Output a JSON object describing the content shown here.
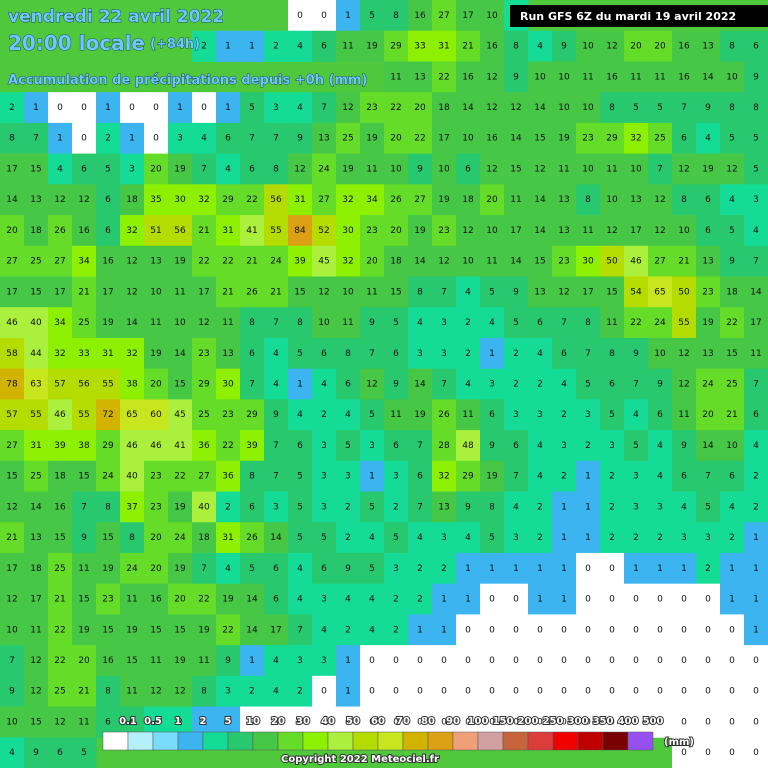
{
  "header": {
    "date": "vendredi 22 avril 2022",
    "time": "20:00 locale",
    "lead": "(+84h)",
    "subtitle": "Accumulation de précipitations depuis +0h (mm)",
    "run": "Run GFS 6Z du mardi 19 avril 2022"
  },
  "grid": {
    "rows": [
      [
        null,
        null,
        null,
        null,
        null,
        null,
        null,
        null,
        null,
        null,
        null,
        null,
        0,
        0,
        1,
        5,
        8,
        16,
        27,
        17,
        10,
        3,
        null,
        null,
        null,
        null,
        null,
        null,
        null,
        null,
        null,
        null
      ],
      [
        null,
        null,
        null,
        null,
        null,
        null,
        null,
        null,
        2,
        1,
        1,
        2,
        4,
        6,
        11,
        19,
        29,
        33,
        31,
        21,
        16,
        8,
        4,
        9,
        10,
        12,
        20,
        20,
        16,
        13,
        8,
        6
      ],
      [
        null,
        null,
        null,
        null,
        null,
        null,
        null,
        null,
        null,
        null,
        null,
        null,
        null,
        null,
        null,
        null,
        11,
        13,
        22,
        16,
        12,
        9,
        10,
        10,
        11,
        16,
        11,
        11,
        16,
        14,
        10,
        9
      ],
      [
        2,
        1,
        0,
        0,
        1,
        0,
        0,
        1,
        0,
        1,
        5,
        3,
        4,
        7,
        12,
        23,
        22,
        20,
        18,
        14,
        12,
        12,
        14,
        10,
        10,
        8,
        5,
        5,
        7,
        9,
        8,
        8
      ],
      [
        8,
        7,
        1,
        0,
        2,
        1,
        0,
        3,
        4,
        6,
        7,
        7,
        9,
        13,
        25,
        19,
        20,
        22,
        17,
        10,
        16,
        14,
        15,
        19,
        23,
        29,
        32,
        25,
        6,
        4,
        5,
        5
      ],
      [
        17,
        15,
        4,
        6,
        5,
        3,
        20,
        19,
        7,
        4,
        6,
        8,
        12,
        24,
        19,
        11,
        10,
        9,
        10,
        6,
        12,
        15,
        12,
        11,
        10,
        11,
        10,
        7,
        12,
        19,
        12,
        5
      ],
      [
        14,
        13,
        12,
        12,
        6,
        18,
        35,
        30,
        32,
        29,
        22,
        56,
        31,
        27,
        32,
        34,
        26,
        27,
        19,
        18,
        20,
        11,
        14,
        13,
        8,
        10,
        13,
        12,
        8,
        6,
        4,
        3
      ],
      [
        20,
        18,
        26,
        16,
        6,
        32,
        51,
        56,
        21,
        31,
        41,
        55,
        84,
        52,
        30,
        23,
        20,
        19,
        23,
        12,
        10,
        17,
        14,
        13,
        11,
        12,
        17,
        12,
        10,
        6,
        5,
        4
      ],
      [
        27,
        25,
        27,
        34,
        16,
        12,
        13,
        19,
        22,
        22,
        21,
        24,
        39,
        45,
        32,
        20,
        18,
        14,
        12,
        10,
        11,
        14,
        15,
        23,
        30,
        50,
        46,
        27,
        21,
        13,
        9,
        7
      ],
      [
        17,
        15,
        17,
        21,
        17,
        12,
        10,
        11,
        17,
        21,
        26,
        21,
        15,
        12,
        10,
        11,
        15,
        8,
        7,
        4,
        5,
        9,
        13,
        12,
        17,
        15,
        54,
        65,
        50,
        23,
        18,
        14
      ],
      [
        46,
        40,
        34,
        25,
        19,
        14,
        11,
        10,
        12,
        11,
        8,
        7,
        8,
        10,
        11,
        9,
        5,
        4,
        3,
        2,
        4,
        5,
        6,
        7,
        8,
        11,
        22,
        24,
        55,
        19,
        22,
        17
      ],
      [
        58,
        44,
        32,
        33,
        31,
        32,
        19,
        14,
        23,
        13,
        6,
        4,
        5,
        6,
        8,
        7,
        6,
        3,
        3,
        2,
        1,
        2,
        4,
        6,
        7,
        8,
        9,
        10,
        12,
        13,
        15,
        11
      ],
      [
        78,
        63,
        57,
        56,
        55,
        38,
        20,
        15,
        29,
        30,
        7,
        4,
        1,
        4,
        6,
        12,
        9,
        14,
        7,
        4,
        3,
        2,
        2,
        4,
        5,
        6,
        7,
        9,
        12,
        24,
        25,
        7
      ],
      [
        57,
        55,
        46,
        55,
        72,
        65,
        60,
        45,
        25,
        23,
        29,
        9,
        4,
        2,
        4,
        5,
        11,
        19,
        26,
        11,
        6,
        3,
        3,
        2,
        3,
        5,
        4,
        6,
        11,
        20,
        21,
        6
      ],
      [
        27,
        31,
        39,
        38,
        29,
        46,
        46,
        41,
        36,
        22,
        39,
        7,
        6,
        3,
        5,
        3,
        6,
        7,
        28,
        48,
        9,
        6,
        4,
        3,
        2,
        3,
        5,
        4,
        9,
        14,
        10,
        4
      ],
      [
        15,
        25,
        18,
        15,
        24,
        40,
        23,
        22,
        27,
        36,
        8,
        7,
        5,
        3,
        3,
        1,
        3,
        6,
        32,
        29,
        19,
        7,
        4,
        2,
        1,
        2,
        3,
        4,
        6,
        7,
        6,
        2
      ],
      [
        12,
        14,
        16,
        7,
        8,
        37,
        23,
        19,
        40,
        2,
        6,
        3,
        5,
        3,
        2,
        5,
        2,
        7,
        13,
        9,
        8,
        4,
        2,
        1,
        1,
        2,
        3,
        3,
        4,
        5,
        4,
        2
      ],
      [
        21,
        13,
        15,
        9,
        15,
        8,
        20,
        24,
        18,
        31,
        26,
        14,
        5,
        5,
        2,
        4,
        5,
        4,
        3,
        4,
        5,
        3,
        2,
        1,
        1,
        2,
        2,
        2,
        3,
        3,
        2,
        1
      ],
      [
        17,
        18,
        25,
        11,
        19,
        24,
        20,
        19,
        7,
        4,
        5,
        6,
        4,
        6,
        9,
        5,
        3,
        2,
        2,
        1,
        1,
        1,
        1,
        1,
        0,
        0,
        1,
        1,
        1,
        2,
        1,
        1
      ],
      [
        12,
        17,
        21,
        15,
        23,
        11,
        16,
        20,
        22,
        19,
        14,
        6,
        4,
        3,
        4,
        4,
        2,
        2,
        1,
        1,
        0,
        0,
        1,
        1,
        0,
        0,
        0,
        0,
        0,
        0,
        1,
        1
      ],
      [
        10,
        11,
        22,
        19,
        15,
        19,
        15,
        15,
        19,
        22,
        14,
        17,
        7,
        4,
        2,
        4,
        2,
        1,
        1,
        0,
        0,
        0,
        0,
        0,
        0,
        0,
        0,
        0,
        0,
        0,
        0,
        1
      ],
      [
        7,
        12,
        22,
        20,
        16,
        15,
        11,
        19,
        11,
        9,
        1,
        4,
        3,
        3,
        1,
        0,
        0,
        0,
        0,
        0,
        0,
        0,
        0,
        0,
        0,
        0,
        0,
        0,
        0,
        0,
        0,
        0
      ],
      [
        9,
        12,
        25,
        21,
        8,
        11,
        12,
        12,
        8,
        3,
        2,
        4,
        2,
        0,
        1,
        0,
        0,
        0,
        0,
        0,
        0,
        0,
        0,
        0,
        0,
        0,
        0,
        0,
        0,
        0,
        0,
        0
      ],
      [
        10,
        15,
        12,
        11,
        6,
        6,
        4,
        2,
        1,
        1,
        0,
        0,
        0,
        0,
        0,
        0,
        0,
        0,
        0,
        0,
        0,
        0,
        0,
        0,
        0,
        0,
        0,
        0,
        0,
        0,
        0,
        0
      ],
      [
        4,
        9,
        6,
        5,
        null,
        null,
        null,
        null,
        null,
        null,
        null,
        null,
        null,
        null,
        null,
        null,
        null,
        null,
        null,
        null,
        null,
        null,
        null,
        null,
        null,
        null,
        null,
        null,
        0,
        0,
        0,
        0
      ]
    ]
  },
  "legend": {
    "thresholds": [
      0.1,
      0.5,
      1,
      2,
      5,
      10,
      20,
      30,
      40,
      50,
      60,
      70,
      80,
      90,
      100,
      150,
      200,
      250,
      300,
      350,
      400,
      500
    ],
    "colors": [
      "#ffffff",
      "#b4f0fa",
      "#78dcfa",
      "#3cb4f0",
      "#14dc96",
      "#28c86e",
      "#46c846",
      "#64dc28",
      "#8cf000",
      "#aaf03c",
      "#b4dc00",
      "#c8e61e",
      "#d2b400",
      "#dca014",
      "#f0a078",
      "#d2a0a0",
      "#c8643c",
      "#dc3c3c",
      "#f00000",
      "#be0000",
      "#780000",
      "#9650f0"
    ],
    "unit": "(mm)"
  },
  "footer": {
    "copyright": "Copyright 2022 Meteociel.fr"
  }
}
